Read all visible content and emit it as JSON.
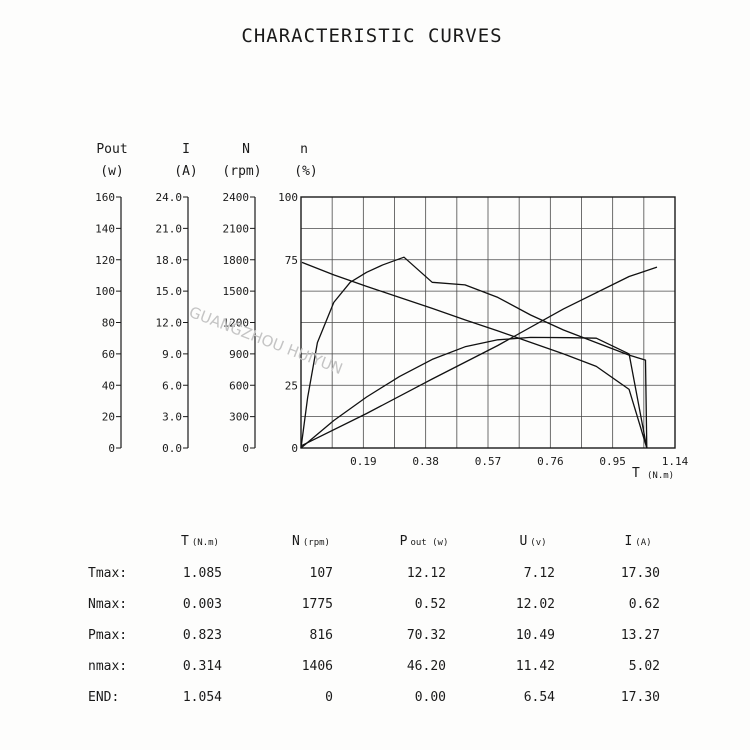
{
  "title": "CHARACTERISTIC CURVES",
  "watermark": "GUANGZHOU HUIYUN",
  "axes": [
    {
      "symbol": "Pout",
      "unit": "(w)",
      "ticks": [
        "160",
        "140",
        "120",
        "100",
        "80",
        "60",
        "40",
        "20",
        "0"
      ]
    },
    {
      "symbol": "I",
      "unit": "(A)",
      "ticks": [
        "24.0",
        "21.0",
        "18.0",
        "15.0",
        "12.0",
        "9.0",
        "6.0",
        "3.0",
        "0.0"
      ]
    },
    {
      "symbol": "N",
      "unit": "(rpm)",
      "ticks": [
        "2400",
        "2100",
        "1800",
        "1500",
        "1200",
        "900",
        "600",
        "300",
        "0"
      ]
    },
    {
      "symbol": "n",
      "unit": "(%)",
      "ticks": [
        "100",
        "75",
        "25",
        "0"
      ]
    }
  ],
  "x_axis": {
    "symbol": "T",
    "unit": "(N.m)",
    "ticks": [
      "0.19",
      "0.38",
      "0.57",
      "0.76",
      "0.95",
      "1.14"
    ]
  },
  "chart_data": {
    "type": "line",
    "title": "CHARACTERISTIC CURVES",
    "xlabel": "T (N.m)",
    "xlim": [
      0,
      1.14
    ],
    "grid": true,
    "series": [
      {
        "name": "N",
        "unit": "rpm",
        "axis": "N",
        "x": [
          0.003,
          0.1,
          0.2,
          0.3,
          0.4,
          0.5,
          0.6,
          0.7,
          0.8,
          0.9,
          1.0,
          1.054
        ],
        "y": [
          1775,
          1655,
          1545,
          1440,
          1335,
          1225,
          1120,
          1010,
          900,
          780,
          560,
          0
        ]
      },
      {
        "name": "I",
        "unit": "A",
        "axis": "I",
        "x": [
          0.0,
          0.2,
          0.4,
          0.6,
          0.8,
          1.0,
          1.085
        ],
        "y": [
          0.2,
          3.3,
          6.6,
          9.8,
          13.3,
          16.4,
          17.3
        ]
      },
      {
        "name": "Pout",
        "unit": "w",
        "axis": "Pout",
        "x": [
          0.0,
          0.1,
          0.2,
          0.3,
          0.4,
          0.5,
          0.6,
          0.7,
          0.823,
          0.9,
          1.0,
          1.054
        ],
        "y": [
          0,
          17.5,
          32.5,
          45.5,
          56.5,
          64.5,
          69,
          70.5,
          70.32,
          70,
          60,
          0
        ]
      },
      {
        "name": "n",
        "unit": "%",
        "axis": "n",
        "x": [
          0.0,
          0.02,
          0.05,
          0.1,
          0.15,
          0.2,
          0.25,
          0.314,
          0.4,
          0.5,
          0.6,
          0.7,
          0.8,
          0.9,
          1.0,
          1.05,
          1.054
        ],
        "y": [
          0,
          20,
          42,
          58,
          66,
          70,
          73,
          76,
          66,
          65,
          60,
          53,
          47,
          42,
          37,
          35,
          0
        ]
      }
    ]
  },
  "table": {
    "headers": [
      {
        "main": "T",
        "sub": "(N.m)"
      },
      {
        "main": "N",
        "sub": "(rpm)"
      },
      {
        "main": "P",
        "sub": "out (w)"
      },
      {
        "main": "U",
        "sub": "(v)"
      },
      {
        "main": "I",
        "sub": "(A)"
      }
    ],
    "rows": [
      {
        "label": "Tmax:",
        "values": [
          "1.085",
          "107",
          "12.12",
          "7.12",
          "17.30"
        ]
      },
      {
        "label": "Nmax:",
        "values": [
          "0.003",
          "1775",
          "0.52",
          "12.02",
          "0.62"
        ]
      },
      {
        "label": "Pmax:",
        "values": [
          "0.823",
          "816",
          "70.32",
          "10.49",
          "13.27"
        ]
      },
      {
        "label": "nmax:",
        "values": [
          "0.314",
          "1406",
          "46.20",
          "11.42",
          "5.02"
        ]
      },
      {
        "label": "END:",
        "values": [
          "1.054",
          "0",
          "0.00",
          "6.54",
          "17.30"
        ]
      }
    ]
  }
}
